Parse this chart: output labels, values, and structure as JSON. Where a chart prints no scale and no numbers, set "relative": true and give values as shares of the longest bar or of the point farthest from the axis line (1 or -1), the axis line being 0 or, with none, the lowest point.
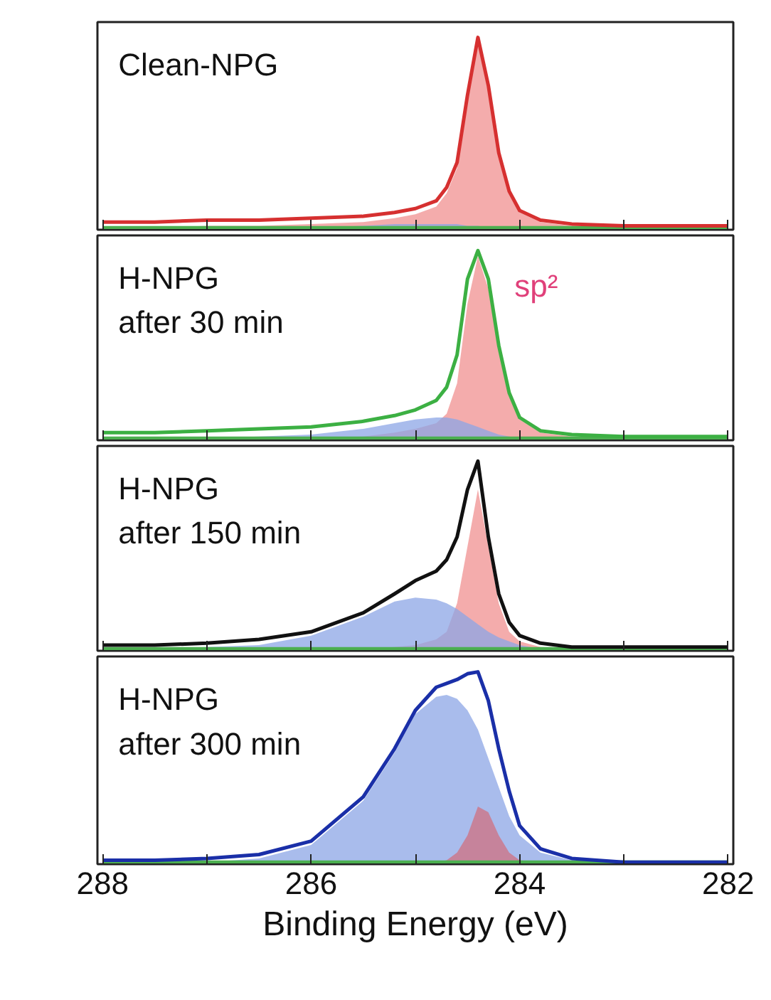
{
  "chart_data": [
    {
      "type": "line",
      "title": "Clean-NPG",
      "relative": true,
      "tick_labels": false,
      "xlim": [
        288.05,
        281.95
      ],
      "xticks": [
        288,
        {
          "value": 287,
          "label": null
        },
        286,
        {
          "value": 285,
          "label": null
        },
        284,
        {
          "value": 283,
          "label": null
        },
        282
      ],
      "x": [
        288,
        287.5,
        287,
        286.5,
        286,
        285.5,
        285.2,
        285,
        284.8,
        284.7,
        284.6,
        284.5,
        284.4,
        284.3,
        284.2,
        284.1,
        284,
        283.8,
        283.5,
        283,
        282.5,
        282
      ],
      "series": [
        {
          "type": "area",
          "color": "#f09090",
          "values": [
            0.01,
            0.01,
            0.02,
            0.02,
            0.03,
            0.04,
            0.06,
            0.08,
            0.12,
            0.19,
            0.32,
            0.67,
            0.97,
            0.73,
            0.39,
            0.19,
            0.09,
            0.04,
            0.02,
            0.01,
            0.01,
            0.01
          ]
        },
        {
          "type": "area",
          "color": "#8ca6e6",
          "values": [
            0.0,
            0.0,
            0.01,
            0.01,
            0.01,
            0.02,
            0.03,
            0.03,
            0.03,
            0.03,
            0.03,
            0.02,
            0.02,
            0.01,
            0.01,
            0.01,
            0.0,
            0.0,
            0.0,
            0.0,
            0.0,
            0.0
          ]
        },
        {
          "color": "#4caf50",
          "values": [
            0.01,
            0.01,
            0.01,
            0.01,
            0.01,
            0.01,
            0.01,
            0.01,
            0.01,
            0.01,
            0.01,
            0.01,
            0.01,
            0.01,
            0.01,
            0.01,
            0.01,
            0.01,
            0.01,
            0.01,
            0.01,
            0.01
          ]
        },
        {
          "color": "#d63030",
          "values": [
            0.04,
            0.04,
            0.05,
            0.05,
            0.06,
            0.07,
            0.09,
            0.11,
            0.15,
            0.22,
            0.35,
            0.7,
            1.0,
            0.75,
            0.4,
            0.2,
            0.1,
            0.05,
            0.03,
            0.02,
            0.02,
            0.02
          ]
        }
      ]
    },
    {
      "type": "line",
      "title": "H-NPG\nafter 30 min",
      "relative": true,
      "tick_labels": false,
      "xlim": [
        288.05,
        281.95
      ],
      "xticks": [
        288,
        {
          "value": 287,
          "label": null
        },
        286,
        {
          "value": 285,
          "label": null
        },
        284,
        {
          "value": 283,
          "label": null
        },
        282
      ],
      "x": [
        288,
        287.5,
        287,
        286.5,
        286,
        285.5,
        285.2,
        285,
        284.8,
        284.7,
        284.6,
        284.5,
        284.4,
        284.3,
        284.2,
        284.1,
        284,
        283.8,
        283.5,
        283,
        282.5,
        282
      ],
      "annotations": [
        "sp²"
      ],
      "series": [
        {
          "type": "area",
          "color": "#f09090",
          "values": [
            0.0,
            0.0,
            0.0,
            0.01,
            0.01,
            0.02,
            0.04,
            0.06,
            0.09,
            0.14,
            0.3,
            0.72,
            0.97,
            0.8,
            0.47,
            0.23,
            0.11,
            0.04,
            0.02,
            0.01,
            0.01,
            0.01
          ]
        },
        {
          "type": "area",
          "color": "#8ca6e6",
          "values": [
            0.01,
            0.01,
            0.01,
            0.02,
            0.03,
            0.06,
            0.09,
            0.11,
            0.12,
            0.12,
            0.11,
            0.09,
            0.07,
            0.05,
            0.03,
            0.02,
            0.01,
            0.0,
            0.0,
            0.0,
            0.0,
            0.0
          ]
        },
        {
          "color": "#4caf50",
          "values": [
            0.01,
            0.01,
            0.01,
            0.01,
            0.01,
            0.01,
            0.01,
            0.01,
            0.01,
            0.01,
            0.01,
            0.01,
            0.01,
            0.01,
            0.01,
            0.01,
            0.01,
            0.01,
            0.01,
            0.01,
            0.01,
            0.01
          ]
        },
        {
          "color": "#3cb043",
          "values": [
            0.04,
            0.04,
            0.05,
            0.06,
            0.07,
            0.1,
            0.13,
            0.16,
            0.21,
            0.28,
            0.45,
            0.85,
            1.0,
            0.85,
            0.5,
            0.25,
            0.12,
            0.05,
            0.03,
            0.02,
            0.02,
            0.02
          ]
        }
      ]
    },
    {
      "type": "line",
      "title": "H-NPG\nafter 150 min",
      "relative": true,
      "tick_labels": false,
      "xlim": [
        288.05,
        281.95
      ],
      "xticks": [
        288,
        {
          "value": 287,
          "label": null
        },
        286,
        {
          "value": 285,
          "label": null
        },
        284,
        {
          "value": 283,
          "label": null
        },
        282
      ],
      "x": [
        288,
        287.5,
        287,
        286.5,
        286,
        285.5,
        285.2,
        285,
        284.8,
        284.7,
        284.6,
        284.5,
        284.4,
        284.3,
        284.2,
        284.1,
        284,
        283.8,
        283.5,
        283,
        282.5,
        282
      ],
      "series": [
        {
          "type": "area",
          "color": "#f09090",
          "values": [
            0.0,
            0.0,
            0.0,
            0.0,
            0.0,
            0.01,
            0.02,
            0.03,
            0.06,
            0.1,
            0.25,
            0.55,
            0.85,
            0.55,
            0.25,
            0.1,
            0.05,
            0.02,
            0.01,
            0.0,
            0.0,
            0.0
          ]
        },
        {
          "type": "area",
          "color": "#8ca6e6",
          "values": [
            0.01,
            0.01,
            0.02,
            0.03,
            0.08,
            0.18,
            0.26,
            0.28,
            0.27,
            0.25,
            0.22,
            0.18,
            0.14,
            0.1,
            0.07,
            0.05,
            0.03,
            0.01,
            0.0,
            0.0,
            0.0,
            0.0
          ]
        },
        {
          "color": "#4caf50",
          "values": [
            0.01,
            0.01,
            0.01,
            0.01,
            0.01,
            0.01,
            0.01,
            0.01,
            0.01,
            0.01,
            0.01,
            0.01,
            0.01,
            0.01,
            0.01,
            0.01,
            0.01,
            0.01,
            0.01,
            0.01,
            0.01,
            0.01
          ]
        },
        {
          "color": "#111111",
          "values": [
            0.03,
            0.03,
            0.04,
            0.06,
            0.1,
            0.2,
            0.3,
            0.37,
            0.42,
            0.48,
            0.6,
            0.85,
            1.0,
            0.6,
            0.3,
            0.15,
            0.08,
            0.04,
            0.02,
            0.02,
            0.02,
            0.02
          ]
        }
      ]
    },
    {
      "type": "line",
      "title": "H-NPG\nafter 300 min",
      "relative": true,
      "tick_labels": "x",
      "xlabel": "Binding Energy (eV)",
      "xlim": [
        288.05,
        281.95
      ],
      "xticks": [
        288,
        {
          "value": 287,
          "label": null
        },
        286,
        {
          "value": 285,
          "label": null
        },
        284,
        {
          "value": 283,
          "label": null
        },
        282
      ],
      "x": [
        288,
        287.5,
        287,
        286.5,
        286,
        285.5,
        285.2,
        285,
        284.8,
        284.7,
        284.6,
        284.5,
        284.4,
        284.3,
        284.2,
        284.1,
        284,
        283.8,
        283.5,
        283,
        282.5,
        282
      ],
      "series": [
        {
          "type": "area",
          "color": "#8ca6e6",
          "values": [
            0.0,
            0.0,
            0.01,
            0.03,
            0.1,
            0.33,
            0.58,
            0.78,
            0.87,
            0.88,
            0.86,
            0.8,
            0.7,
            0.55,
            0.4,
            0.25,
            0.15,
            0.06,
            0.02,
            0.0,
            0.0,
            0.0
          ]
        },
        {
          "type": "area",
          "color": "#d07080",
          "values": [
            0.0,
            0.0,
            0.0,
            0.0,
            0.0,
            0.0,
            0.0,
            0.01,
            0.01,
            0.02,
            0.06,
            0.15,
            0.3,
            0.27,
            0.15,
            0.06,
            0.02,
            0.01,
            0.0,
            0.0,
            0.0,
            0.0
          ]
        },
        {
          "color": "#4caf50",
          "values": [
            0.01,
            0.01,
            0.01,
            0.01,
            0.01,
            0.01,
            0.01,
            0.01,
            0.01,
            0.01,
            0.01,
            0.01,
            0.01,
            0.01,
            0.01,
            0.01,
            0.01,
            0.01,
            0.01,
            0.01,
            0.01,
            0.01
          ]
        },
        {
          "color": "#1a2fa8",
          "values": [
            0.02,
            0.02,
            0.03,
            0.05,
            0.12,
            0.35,
            0.6,
            0.8,
            0.92,
            0.94,
            0.96,
            0.99,
            1.0,
            0.85,
            0.6,
            0.38,
            0.2,
            0.08,
            0.03,
            0.01,
            0.01,
            0.01
          ]
        }
      ]
    }
  ]
}
